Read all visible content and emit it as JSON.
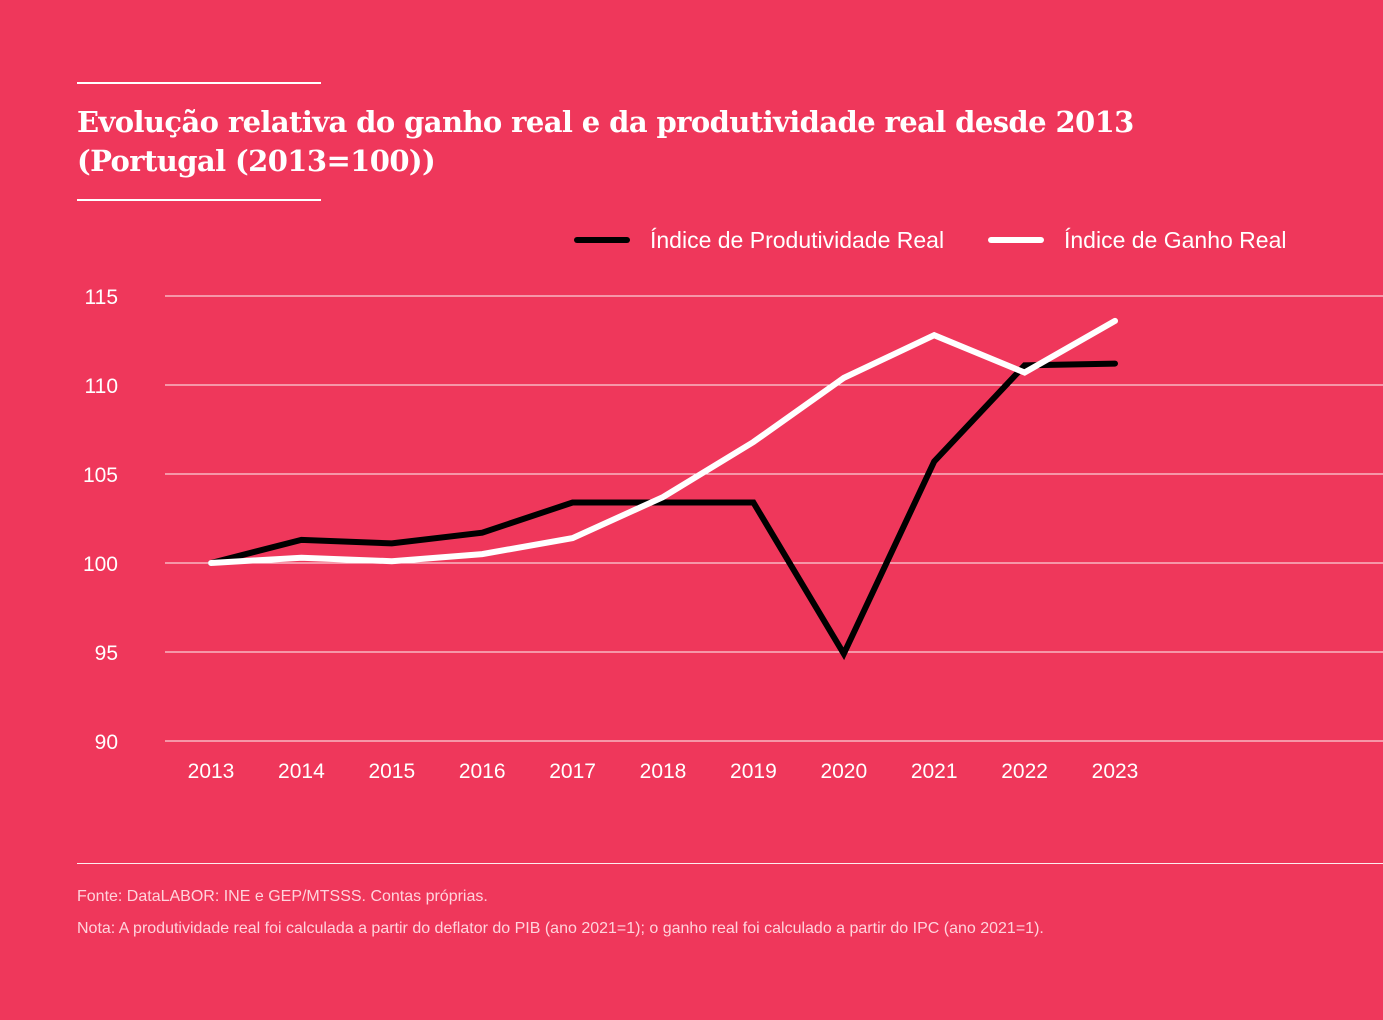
{
  "header": {
    "title_line1": "Evolução relativa do ganho real e da produtividade real desde 2013",
    "title_line2": "(Portugal (2013=100))"
  },
  "legend": {
    "items": [
      {
        "label": "Índice de Produtividade Real",
        "color": "#000000"
      },
      {
        "label": "Índice de Ganho Real",
        "color": "#ffffff"
      }
    ]
  },
  "chart_data": {
    "type": "line",
    "title": "Evolução relativa do ganho real e da produtividade real desde 2013 (Portugal (2013=100))",
    "xlabel": "",
    "ylabel": "",
    "x": [
      "2013",
      "2014",
      "2015",
      "2016",
      "2017",
      "2018",
      "2019",
      "2020",
      "2021",
      "2022",
      "2023"
    ],
    "ylim": [
      90,
      115
    ],
    "yticks": [
      90,
      95,
      100,
      105,
      110,
      115
    ],
    "grid": true,
    "legend_position": "top-right",
    "series": [
      {
        "name": "Índice de Produtividade Real",
        "color": "#000000",
        "values": [
          100.0,
          101.3,
          101.1,
          101.7,
          103.4,
          103.4,
          103.4,
          94.9,
          105.7,
          111.1,
          111.2
        ]
      },
      {
        "name": "Índice de Ganho Real",
        "color": "#ffffff",
        "values": [
          100.0,
          100.3,
          100.1,
          100.5,
          101.4,
          103.7,
          106.8,
          110.4,
          112.8,
          110.7,
          113.6
        ]
      }
    ]
  },
  "footer": {
    "source": "Fonte: DataLABOR: INE e GEP/MTSSS. Contas próprias.",
    "note": "Nota: A produtividade real foi calculada a partir do deflator do PIB (ano 2021=1); o ganho real foi calculado a partir do IPC (ano 2021=1)."
  }
}
